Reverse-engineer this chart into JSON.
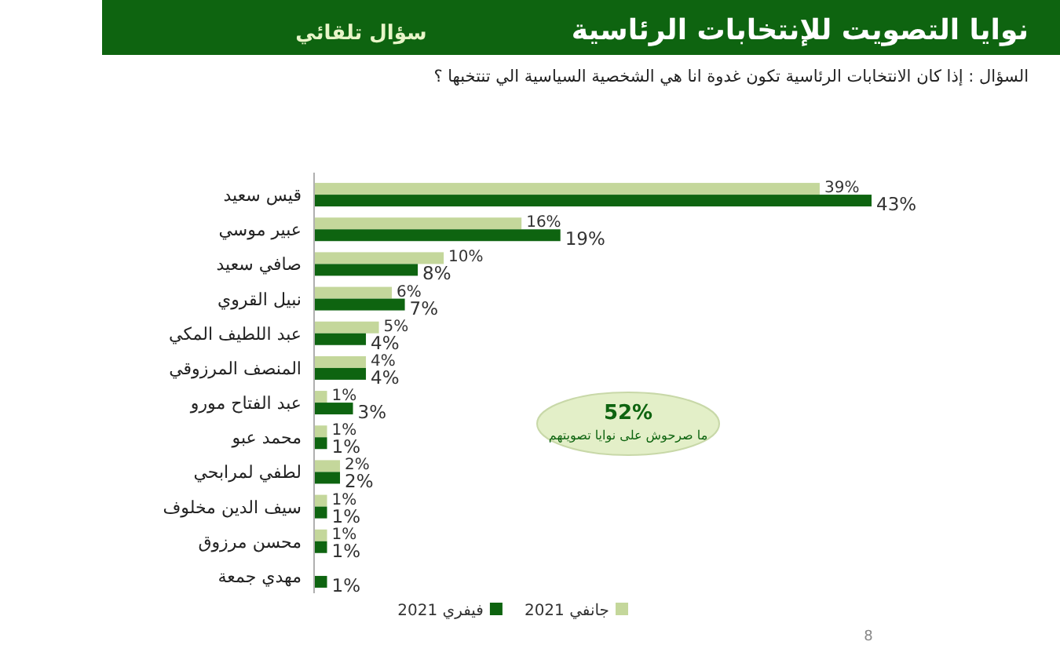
{
  "chart_data": {
    "type": "bar",
    "orientation": "horizontal",
    "title": "نوايا التصويت للإنتخابات الرئاسية",
    "subtitle": "سؤال تلقائي",
    "categories": [
      "قيس سعيد",
      "عبير موسي",
      "صافي سعيد",
      "نبيل القروي",
      "عبد اللطيف المكي",
      "المنصف المرزوقي",
      "عبد الفتاح مورو",
      "محمد عبو",
      "لطفي لمرابحي",
      "سيف الدين مخلوف",
      "محسن مرزوق",
      "مهدي جمعة"
    ],
    "series": [
      {
        "name": "جانفي 2021",
        "color": "#c4d79b",
        "values": [
          39,
          16,
          10,
          6,
          5,
          4,
          1,
          1,
          2,
          1,
          1,
          null
        ],
        "value_labels": [
          "39%",
          "16%",
          "10%",
          "6%",
          "5%",
          "4%",
          "1%",
          "1%",
          "2%",
          "1%",
          "1%",
          null
        ]
      },
      {
        "name": "فيفري 2021",
        "color": "#0e6410",
        "values": [
          43,
          19,
          8,
          7,
          4,
          4,
          3,
          1,
          2,
          1,
          1,
          1
        ],
        "value_labels": [
          "43%",
          "19%",
          "8%",
          "7%",
          "4%",
          "4%",
          "3%",
          "1%",
          "2%",
          "1%",
          "1%",
          "1%"
        ]
      }
    ],
    "legend": "bottom",
    "annotations": [
      "السؤال : إذا كان الانتخابات الرئاسية تكون غدوة انا هي الشخصية السياسية الي تنتخبها ؟",
      "52%",
      "ما صرحوش على نوايا تصويتهم",
      "8"
    ]
  }
}
